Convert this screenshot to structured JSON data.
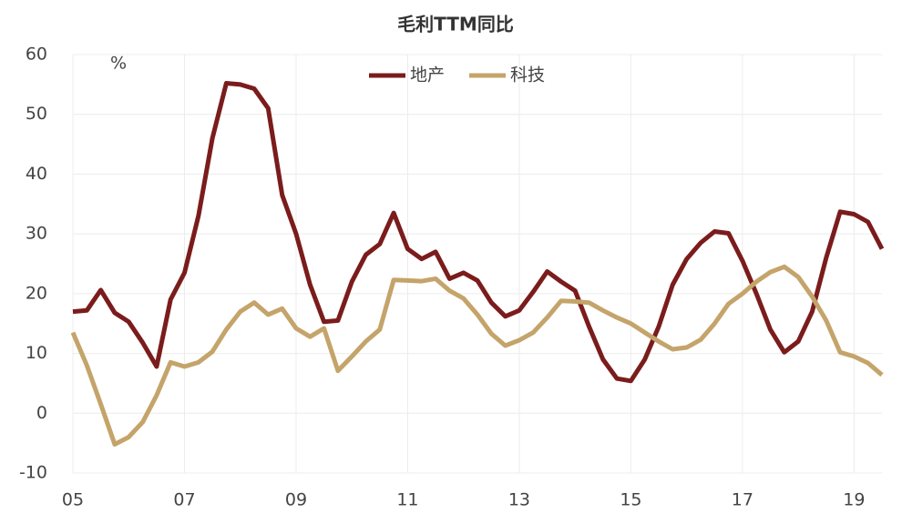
{
  "chart_data": {
    "type": "line",
    "title": "毛利TTM同比",
    "ylabel": "%",
    "x": [
      5,
      5.25,
      5.5,
      5.75,
      6,
      6.25,
      6.5,
      6.75,
      7,
      7.25,
      7.5,
      7.75,
      8,
      8.25,
      8.5,
      8.75,
      9,
      9.25,
      9.5,
      9.75,
      10,
      10.25,
      10.5,
      10.75,
      11,
      11.25,
      11.5,
      11.75,
      12,
      12.25,
      12.5,
      12.75,
      13,
      13.25,
      13.5,
      13.75,
      14,
      14.25,
      14.5,
      14.75,
      15,
      15.25,
      15.5,
      15.75,
      16,
      16.25,
      16.5,
      16.75,
      17,
      17.25,
      17.5,
      17.75,
      18,
      18.25,
      18.5,
      18.75,
      19,
      19.25,
      19.5
    ],
    "series": [
      {
        "name": "地产",
        "color": "#7b1c1c",
        "values": [
          17,
          17.2,
          20.6,
          16.8,
          15.3,
          11.8,
          7.8,
          19,
          23.5,
          33,
          46,
          55.2,
          55,
          54.3,
          51,
          36.5,
          30,
          21.5,
          15.3,
          15.5,
          22,
          26.5,
          28.3,
          33.5,
          27.5,
          25.8,
          27,
          22.5,
          23.5,
          22.2,
          18.5,
          16.2,
          17.2,
          20.3,
          23.7,
          22,
          20.5,
          14.5,
          9,
          5.8,
          5.4,
          9,
          14.5,
          21.5,
          25.8,
          28.5,
          30.4,
          30.1,
          25.5,
          20,
          14,
          10.2,
          12,
          17,
          26,
          33.7,
          33.3,
          32,
          27.5
        ]
      },
      {
        "name": "科技",
        "color": "#c4a46a",
        "values": [
          13.5,
          8,
          1.5,
          -5.2,
          -4,
          -1.5,
          3,
          8.5,
          7.8,
          8.5,
          10.3,
          14,
          17,
          18.5,
          16.5,
          17.5,
          14.2,
          12.8,
          14.2,
          7.1,
          9.5,
          12,
          14,
          22.3,
          22.2,
          22.1,
          22.5,
          20.5,
          19.2,
          16.5,
          13.3,
          11.3,
          12.2,
          13.5,
          16,
          18.8,
          18.7,
          18.5,
          17.2,
          16,
          15,
          13.5,
          12,
          10.7,
          11,
          12.3,
          15,
          18.3,
          20,
          22,
          23.6,
          24.5,
          22.8,
          19.5,
          15.5,
          10.2,
          9.5,
          8.4,
          6.4
        ]
      }
    ],
    "xlim": [
      5,
      19.5
    ],
    "xticks": [
      {
        "value": 5,
        "label": "05"
      },
      {
        "value": 7,
        "label": "07"
      },
      {
        "value": 9,
        "label": "09"
      },
      11,
      13,
      15,
      17,
      19
    ],
    "ylim": [
      -10,
      60
    ],
    "yticks": [
      -10,
      0,
      10,
      20,
      30,
      40,
      50,
      60
    ],
    "grid": true,
    "legend": "top"
  }
}
